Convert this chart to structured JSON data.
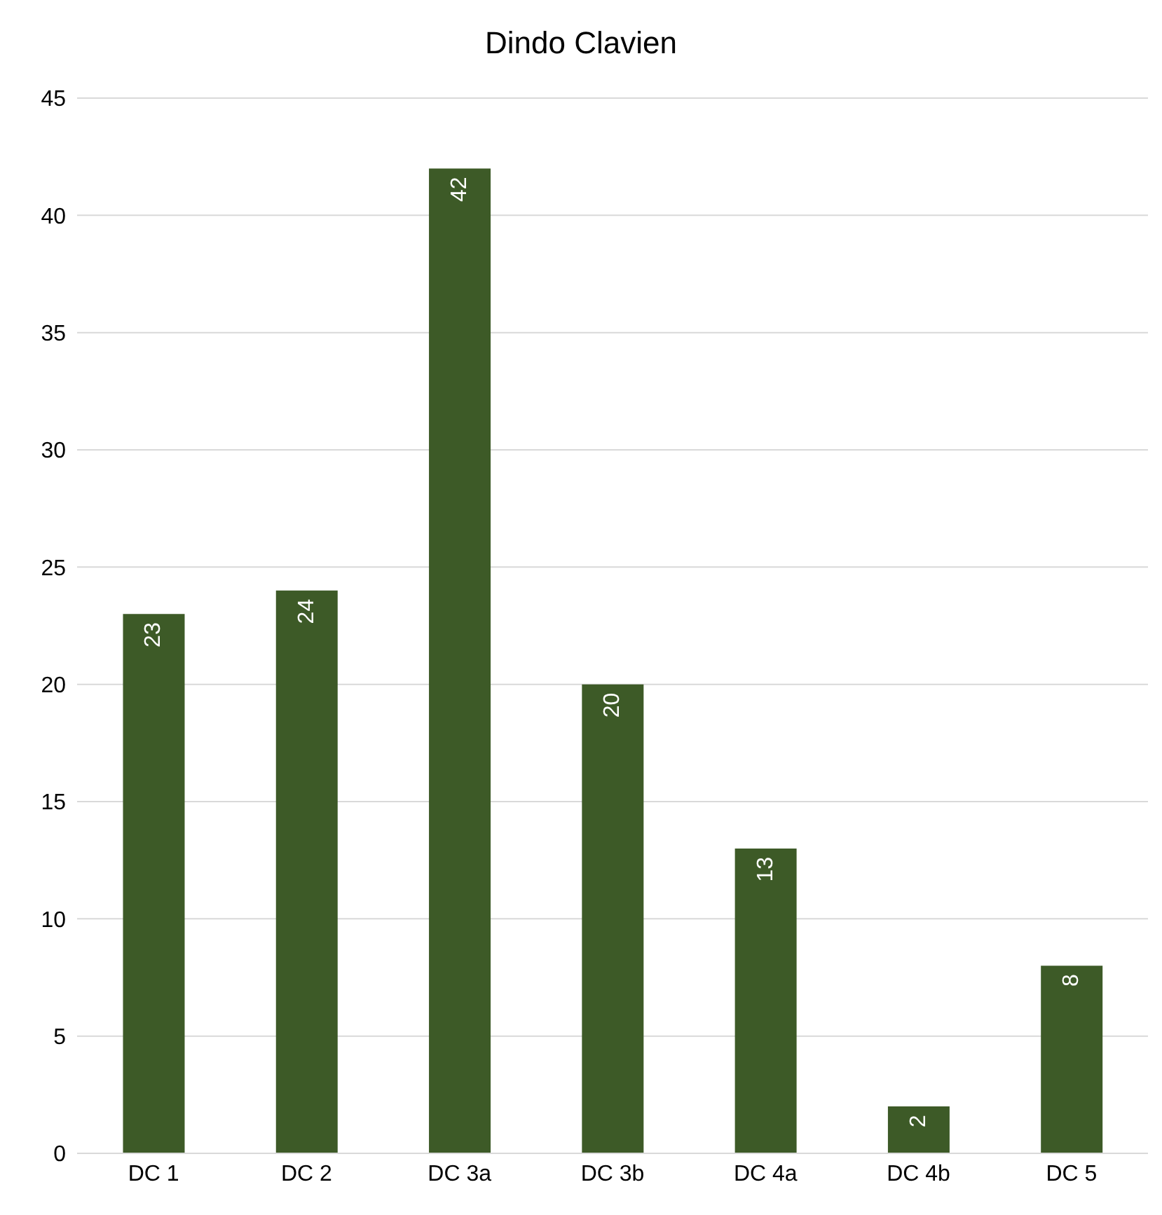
{
  "chart_data": {
    "type": "bar",
    "title": "Dindo Clavien",
    "categories": [
      "DC 1",
      "DC 2",
      "DC 3a",
      "DC 3b",
      "DC 4a",
      "DC 4b",
      "DC 5"
    ],
    "values": [
      23,
      24,
      42,
      20,
      13,
      2,
      8
    ],
    "color": "#3d5a27",
    "ylim": [
      0,
      45
    ],
    "yticks": [
      0,
      5,
      10,
      15,
      20,
      25,
      30,
      35,
      40,
      45
    ],
    "grid": "y",
    "data_labels": true
  }
}
